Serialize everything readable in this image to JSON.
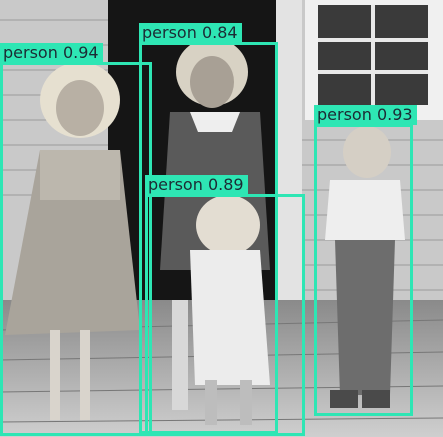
{
  "detections": [
    {
      "label": "person",
      "score": "0.94"
    },
    {
      "label": "person",
      "score": "0.84"
    },
    {
      "label": "person",
      "score": "0.93"
    },
    {
      "label": "person",
      "score": "0.89"
    }
  ],
  "colors": {
    "box": "#2ee6b4",
    "label_text": "#1c2b34"
  }
}
